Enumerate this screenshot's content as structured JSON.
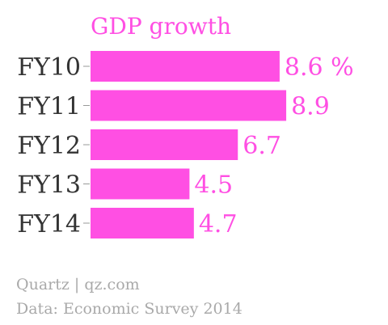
{
  "chart_data": {
    "type": "bar",
    "orientation": "horizontal",
    "title": "",
    "series": [
      {
        "name": "GDP growth",
        "values": [
          8.6,
          8.9,
          6.7,
          4.5,
          4.7
        ],
        "color": "#ff4fe3"
      }
    ],
    "categories": [
      "FY10",
      "FY11",
      "FY12",
      "FY13",
      "FY14"
    ],
    "data_labels": [
      "8.6 %",
      "8.9",
      "6.7",
      "4.5",
      "4.7"
    ],
    "xlim": [
      0,
      10
    ],
    "grid": false,
    "legend": "none"
  },
  "colors": {
    "bar": "#ff4fe3",
    "label_text": "#ff4fe3",
    "category_text": "#333333",
    "axis_line": "#999999",
    "footer_text": "#a9a9a9"
  },
  "footer": {
    "source": "Quartz | qz.com",
    "data": "Data: Economic Survey 2014"
  }
}
